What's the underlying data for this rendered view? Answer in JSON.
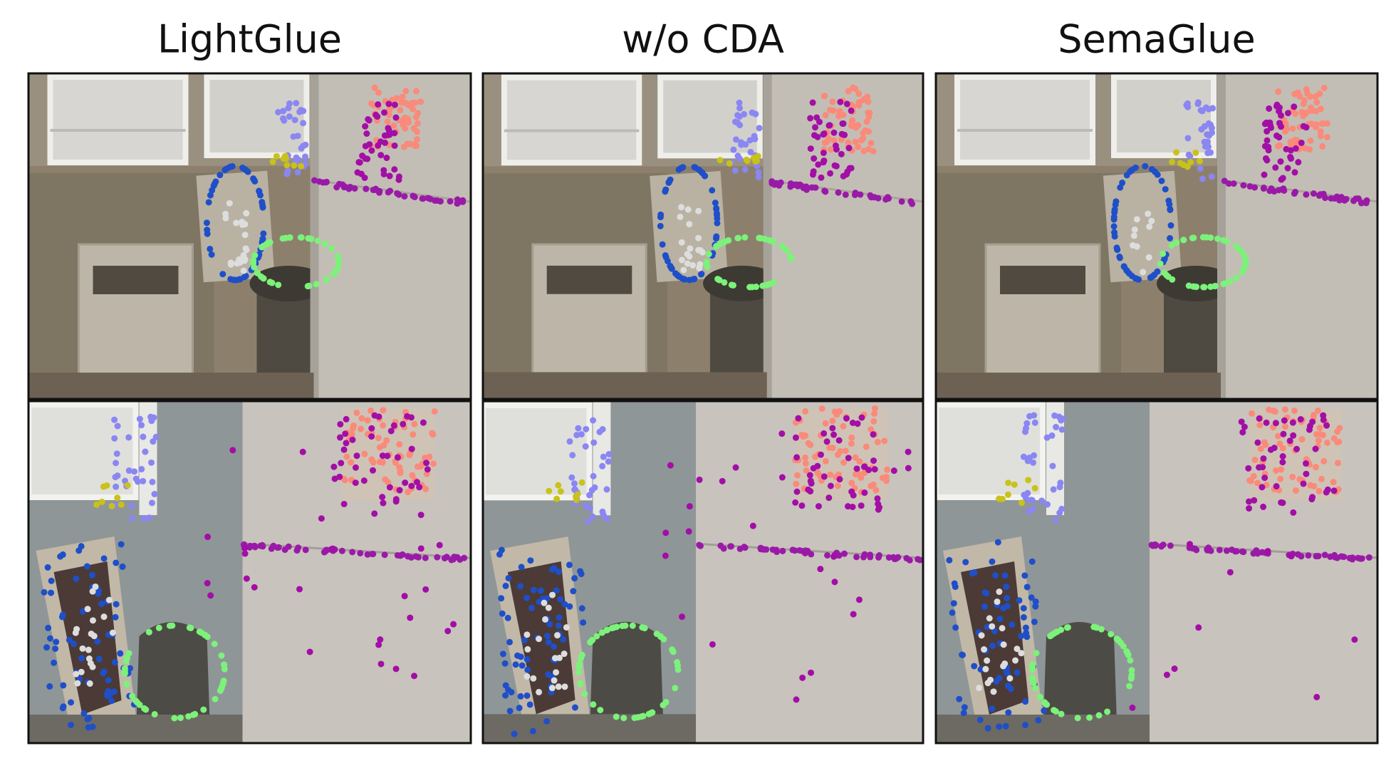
{
  "header": {
    "titles": [
      "LightGlue",
      "w/o CDA",
      "SemaGlue"
    ]
  }
}
